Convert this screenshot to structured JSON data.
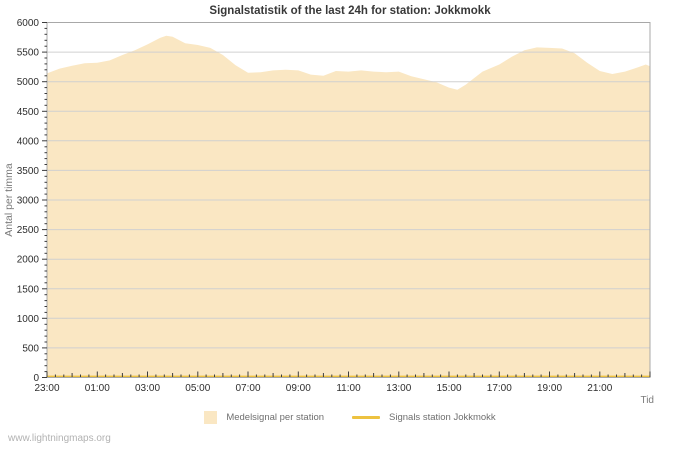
{
  "page": {
    "title": "Signalstatistik of the last 24h for station: Jokkmokk",
    "watermark": "www.lightningmaps.org"
  },
  "axes": {
    "y_label": "Antal per timma",
    "x_label": "Tid",
    "y_tick_labels": [
      "0",
      "500",
      "1000",
      "1500",
      "2000",
      "2500",
      "3000",
      "3500",
      "4000",
      "4500",
      "5000",
      "5500",
      "6000"
    ],
    "x_tick_labels": [
      "23:00",
      "01:00",
      "03:00",
      "05:00",
      "07:00",
      "09:00",
      "11:00",
      "13:00",
      "15:00",
      "17:00",
      "19:00",
      "21:00"
    ]
  },
  "legend": {
    "items": [
      {
        "label": "Medelsignal per station",
        "swatch": "area"
      },
      {
        "label": "Signals station Jokkmokk",
        "swatch": "line"
      }
    ]
  },
  "colors": {
    "area": "#FAE7C3",
    "line": "#EDC240",
    "grid": "#D0D0D0",
    "axis": "#A8A8A8",
    "tick": "#3C3C3C",
    "tick_text": "#2E2E2E"
  },
  "chart_data": {
    "type": "area",
    "title": "Signalstatistik of the last 24h for station: Jokkmokk",
    "xlabel": "Tid",
    "ylabel": "Antal per timma",
    "ylim": [
      0,
      6000
    ],
    "y_major_step": 500,
    "y_minor_step": 100,
    "x_range_minutes": [
      0,
      1440
    ],
    "x_start_time": "23:00",
    "x_major_step_minutes": 120,
    "x_hour_step_minutes": 60,
    "x_minor_step_minutes": 20,
    "x_tick_labels": [
      "23:00",
      "01:00",
      "03:00",
      "05:00",
      "07:00",
      "09:00",
      "11:00",
      "13:00",
      "15:00",
      "17:00",
      "19:00",
      "21:00"
    ],
    "grid": true,
    "legend_position": "bottom-center",
    "series": [
      {
        "name": "Medelsignal per station",
        "render": "area",
        "color": "#FAE7C3",
        "x_minutes": [
          0,
          30,
          60,
          90,
          120,
          150,
          180,
          210,
          240,
          270,
          285,
          300,
          330,
          360,
          390,
          420,
          450,
          480,
          510,
          540,
          570,
          600,
          630,
          660,
          690,
          720,
          750,
          780,
          810,
          840,
          870,
          900,
          930,
          960,
          980,
          1000,
          1020,
          1040,
          1080,
          1110,
          1140,
          1170,
          1200,
          1230,
          1260,
          1290,
          1320,
          1350,
          1380,
          1410,
          1430,
          1440
        ],
        "values": [
          5140,
          5220,
          5270,
          5310,
          5320,
          5360,
          5450,
          5530,
          5630,
          5740,
          5775,
          5760,
          5650,
          5620,
          5570,
          5450,
          5280,
          5150,
          5160,
          5190,
          5200,
          5190,
          5120,
          5100,
          5180,
          5170,
          5190,
          5170,
          5160,
          5170,
          5090,
          5040,
          4990,
          4900,
          4865,
          4950,
          5060,
          5170,
          5290,
          5420,
          5530,
          5580,
          5570,
          5560,
          5480,
          5320,
          5180,
          5130,
          5170,
          5240,
          5290,
          5260
        ]
      },
      {
        "name": "Signals station Jokkmokk",
        "render": "line",
        "color": "#EDC240",
        "x_minutes": [
          0,
          1440
        ],
        "values": [
          15,
          15
        ]
      }
    ]
  }
}
